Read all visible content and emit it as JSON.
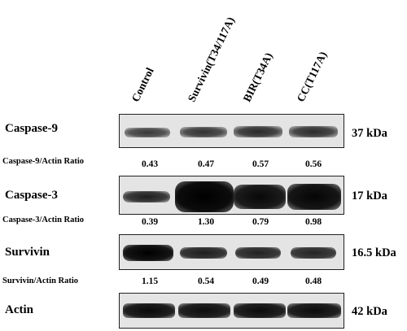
{
  "lanes": [
    {
      "label": "Control"
    },
    {
      "label": "Survivin(T34/117A)"
    },
    {
      "label": "BIR(T34A)"
    },
    {
      "label": "CC(T117A)"
    }
  ],
  "rows": {
    "caspase9": {
      "label": "Caspase-9",
      "kda": "37 kDa",
      "ratio_label": "Caspase-9/Actin Ratio",
      "ratios": [
        "0.43",
        "0.47",
        "0.57",
        "0.56"
      ]
    },
    "caspase3": {
      "label": "Caspase-3",
      "kda": "17 kDa",
      "ratio_label": "Caspase-3/Actin Ratio",
      "ratios": [
        "0.39",
        "1.30",
        "0.79",
        "0.98"
      ]
    },
    "survivin": {
      "label": "Survivin",
      "kda": "16.5 kDa",
      "ratio_label": "Survivin/Actin Ratio",
      "ratios": [
        "1.15",
        "0.54",
        "0.49",
        "0.48"
      ]
    },
    "actin": {
      "label": "Actin",
      "kda": "42 kDa"
    }
  }
}
